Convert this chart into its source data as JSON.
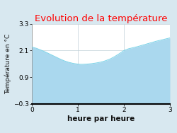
{
  "title": "Evolution de la température",
  "title_color": "#ff0000",
  "xlabel": "heure par heure",
  "ylabel": "Température en °C",
  "background_color": "#d8e8f0",
  "plot_bg_color": "#ffffff",
  "line_color": "#7dd4e8",
  "fill_color": "#aad8ee",
  "x": [
    0.0,
    0.1,
    0.2,
    0.3,
    0.4,
    0.5,
    0.6,
    0.7,
    0.8,
    0.9,
    1.0,
    1.05,
    1.1,
    1.2,
    1.3,
    1.4,
    1.5,
    1.6,
    1.7,
    1.8,
    1.9,
    2.0,
    2.1,
    2.2,
    2.3,
    2.4,
    2.5,
    2.6,
    2.7,
    2.8,
    2.9,
    3.0
  ],
  "y": [
    2.26,
    2.2,
    2.12,
    2.03,
    1.93,
    1.83,
    1.73,
    1.64,
    1.57,
    1.52,
    1.49,
    1.48,
    1.48,
    1.49,
    1.51,
    1.54,
    1.58,
    1.64,
    1.72,
    1.83,
    1.96,
    2.1,
    2.18,
    2.23,
    2.28,
    2.34,
    2.4,
    2.46,
    2.52,
    2.57,
    2.62,
    2.67
  ],
  "xlim": [
    0,
    3
  ],
  "ylim": [
    -0.3,
    3.3
  ],
  "xticks": [
    0,
    1,
    2,
    3
  ],
  "yticks": [
    -0.3,
    0.9,
    2.1,
    3.3
  ],
  "title_fontsize": 9.5,
  "xlabel_fontsize": 7.5,
  "ylabel_fontsize": 6.5,
  "tick_fontsize": 6.5
}
